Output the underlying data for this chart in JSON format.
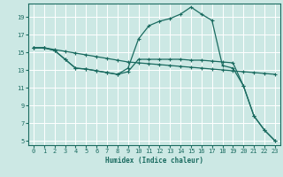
{
  "xlabel": "Humidex (Indice chaleur)",
  "xlim": [
    -0.5,
    23.5
  ],
  "ylim": [
    4.5,
    20.5
  ],
  "xticks": [
    0,
    1,
    2,
    3,
    4,
    5,
    6,
    7,
    8,
    9,
    10,
    11,
    12,
    13,
    14,
    15,
    16,
    17,
    18,
    19,
    20,
    21,
    22,
    23
  ],
  "yticks": [
    5,
    7,
    9,
    11,
    13,
    15,
    17,
    19
  ],
  "bg_color": "#cce8e4",
  "grid_color": "#ffffff",
  "line_color": "#1a6b60",
  "curve1_x": [
    0,
    1,
    2,
    3,
    4,
    5,
    6,
    7,
    8,
    9,
    10,
    11,
    12,
    13,
    14,
    15,
    16,
    17,
    18,
    19,
    20,
    21,
    22,
    23
  ],
  "curve1_y": [
    15.5,
    15.5,
    15.3,
    15.1,
    14.9,
    14.7,
    14.5,
    14.3,
    14.1,
    13.9,
    13.8,
    13.7,
    13.6,
    13.5,
    13.4,
    13.3,
    13.2,
    13.1,
    13.0,
    12.9,
    12.8,
    12.7,
    12.6,
    12.5
  ],
  "curve2_x": [
    0,
    1,
    2,
    3,
    4,
    5,
    6,
    7,
    8,
    9,
    10,
    11,
    12,
    13,
    14,
    15,
    16,
    17,
    18,
    19,
    20,
    21,
    22,
    23
  ],
  "curve2_y": [
    15.5,
    15.5,
    15.2,
    14.2,
    13.2,
    13.1,
    12.9,
    12.7,
    12.5,
    13.2,
    16.5,
    18.0,
    18.5,
    18.8,
    19.3,
    20.1,
    19.3,
    18.6,
    13.5,
    13.2,
    11.2,
    7.8,
    6.2,
    5.0
  ],
  "curve3_x": [
    0,
    1,
    2,
    3,
    4,
    5,
    6,
    7,
    8,
    9,
    10,
    11,
    12,
    13,
    14,
    15,
    16,
    17,
    18,
    19,
    20,
    21,
    22,
    23
  ],
  "curve3_y": [
    15.5,
    15.5,
    15.2,
    14.2,
    13.2,
    13.1,
    12.9,
    12.7,
    12.5,
    12.8,
    14.2,
    14.2,
    14.2,
    14.2,
    14.2,
    14.1,
    14.1,
    14.0,
    13.9,
    13.8,
    11.2,
    7.8,
    6.2,
    5.0
  ]
}
